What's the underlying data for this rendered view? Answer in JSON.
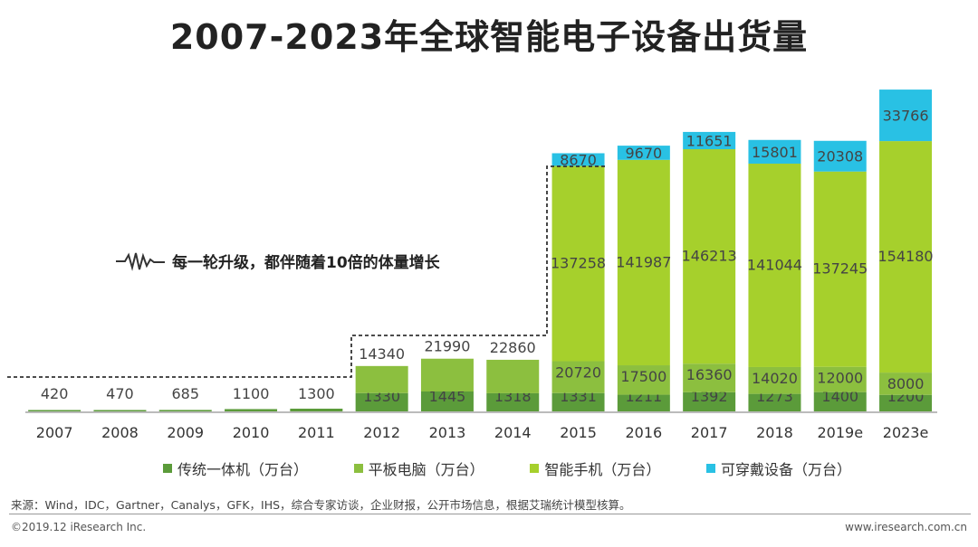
{
  "title": "2007-2023年全球智能电子设备出货量",
  "annotation": "每一轮升级，都伴随着10倍的体量增长",
  "source": "来源：Wind，IDC，Gartner，Canalys，GFK，IHS，综合专家访谈，企业财报，公开市场信息，根据艾瑞统计模型核算。",
  "copyright": "©2019.12 iResearch Inc.",
  "website": "www.iresearch.com.cn",
  "colors": {
    "pc": "#5b9b3a",
    "tablet": "#8cbf3f",
    "phone": "#a6d02c",
    "wearable": "#29c1e4"
  },
  "legend": [
    {
      "label": "传统一体机（万台）",
      "color": "#5b9b3a"
    },
    {
      "label": "平板电脑（万台）",
      "color": "#8cbf3f"
    },
    {
      "label": "智能手机（万台）",
      "color": "#a6d02c"
    },
    {
      "label": "可穿戴设备（万台）",
      "color": "#29c1e4"
    }
  ],
  "chart_data": {
    "type": "bar",
    "stacked": true,
    "categories": [
      "2007",
      "2008",
      "2009",
      "2010",
      "2011",
      "2012",
      "2013",
      "2014",
      "2015",
      "2016",
      "2017",
      "2018",
      "2019e",
      "2023e"
    ],
    "series": [
      {
        "name": "传统一体机（万台）",
        "values": [
          420,
          470,
          685,
          1100,
          1300,
          1330,
          1445,
          1318,
          1331,
          1211,
          1392,
          1273,
          1400,
          1200
        ]
      },
      {
        "name": "平板电脑（万台）",
        "values": [
          null,
          null,
          null,
          null,
          null,
          14340,
          21990,
          22860,
          20720,
          17500,
          16360,
          14020,
          12000,
          8000
        ]
      },
      {
        "name": "智能手机（万台）",
        "values": [
          null,
          null,
          null,
          null,
          null,
          null,
          null,
          null,
          137258,
          141987,
          146213,
          141044,
          137245,
          154180
        ]
      },
      {
        "name": "可穿戴设备（万台）",
        "values": [
          null,
          null,
          null,
          null,
          null,
          null,
          null,
          null,
          8670,
          9670,
          11651,
          15801,
          20308,
          33766
        ]
      }
    ],
    "legend_position": "bottom",
    "grid": false
  }
}
